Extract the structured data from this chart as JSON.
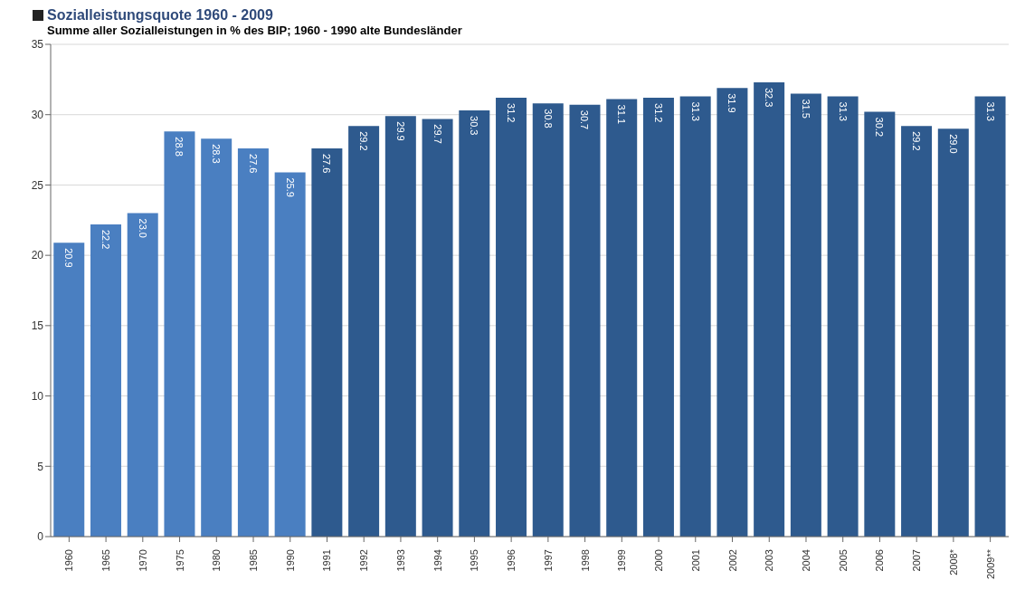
{
  "chart_data": {
    "type": "bar",
    "title": "Sozialleistungsquote 1960 - 2009",
    "subtitle": "Summe aller Sozialleistungen in % des BIP; 1960 - 1990 alte Bundesländer",
    "categories": [
      "1960",
      "1965",
      "1970",
      "1975",
      "1980",
      "1985",
      "1990",
      "1991",
      "1992",
      "1993",
      "1994",
      "1995",
      "1996",
      "1997",
      "1998",
      "1999",
      "2000",
      "2001",
      "2002",
      "2003",
      "2004",
      "2005",
      "2006",
      "2007",
      "2008*",
      "2009**"
    ],
    "values": [
      20.9,
      22.2,
      23.0,
      28.8,
      28.3,
      27.6,
      25.9,
      27.6,
      29.2,
      29.9,
      29.7,
      30.3,
      31.2,
      30.8,
      30.7,
      31.1,
      31.2,
      31.3,
      31.9,
      32.3,
      31.5,
      31.3,
      30.2,
      29.2,
      29.0,
      31.3
    ],
    "value_labels": [
      "20.9",
      "22.2",
      "23.0",
      "28.8",
      "28.3",
      "27.6",
      "25.9",
      "27.6",
      "29.2",
      "29.9",
      "29.7",
      "30.3",
      "31.2",
      "30.8",
      "30.7",
      "31.1",
      "31.2",
      "31.3",
      "31.9",
      "32.3",
      "31.5",
      "31.3",
      "30.2",
      "29.2",
      "29.0",
      "31.3"
    ],
    "colors": [
      "#4a7fc1",
      "#4a7fc1",
      "#4a7fc1",
      "#4a7fc1",
      "#4a7fc1",
      "#4a7fc1",
      "#4a7fc1",
      "#2e5a8e",
      "#2e5a8e",
      "#2e5a8e",
      "#2e5a8e",
      "#2e5a8e",
      "#2e5a8e",
      "#2e5a8e",
      "#2e5a8e",
      "#2e5a8e",
      "#2e5a8e",
      "#2e5a8e",
      "#2e5a8e",
      "#2e5a8e",
      "#2e5a8e",
      "#2e5a8e",
      "#2e5a8e",
      "#2e5a8e",
      "#2e5a8e",
      "#2e5a8e"
    ],
    "ylim": [
      0,
      35
    ],
    "yticks": [
      0,
      5,
      10,
      15,
      20,
      25,
      30,
      35
    ],
    "grid": "y",
    "legend": false
  }
}
